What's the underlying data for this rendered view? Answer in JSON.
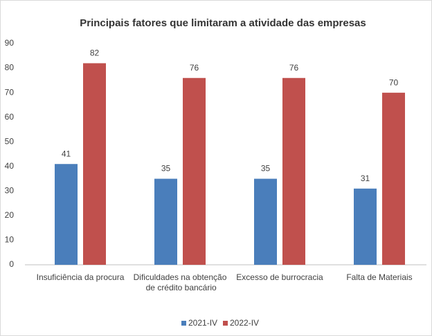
{
  "chart_data": {
    "type": "bar",
    "title": "Principais fatores que limitaram a atividade das empresas",
    "categories": [
      "Insuficiência da procura",
      "Dificuldades na obtenção de crédito bancário",
      "Excesso de burrocracia",
      "Falta de Materiais"
    ],
    "series": [
      {
        "name": "2021-IV",
        "color": "#4a7ebb",
        "values": [
          41,
          35,
          35,
          31
        ]
      },
      {
        "name": "2022-IV",
        "color": "#c0504d",
        "values": [
          82,
          76,
          76,
          70
        ]
      }
    ],
    "ylim": [
      0,
      90
    ],
    "yticks": [
      0,
      10,
      20,
      30,
      40,
      50,
      60,
      70,
      80,
      90
    ],
    "grid": false,
    "legend": "bottom"
  }
}
